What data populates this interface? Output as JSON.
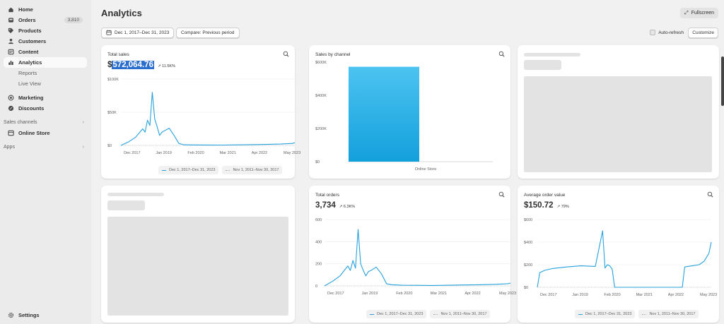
{
  "sidebar": {
    "items": [
      {
        "label": "Home",
        "icon": "home-icon"
      },
      {
        "label": "Orders",
        "icon": "orders-icon",
        "badge": "3,810"
      },
      {
        "label": "Products",
        "icon": "tag-icon"
      },
      {
        "label": "Customers",
        "icon": "person-icon"
      },
      {
        "label": "Content",
        "icon": "content-icon"
      },
      {
        "label": "Analytics",
        "icon": "chart-icon",
        "active": true
      }
    ],
    "analytics_sub": [
      "Reports",
      "Live View"
    ],
    "items2": [
      {
        "label": "Marketing",
        "icon": "target-icon"
      },
      {
        "label": "Discounts",
        "icon": "discount-icon"
      }
    ],
    "sales_channels_label": "Sales channels",
    "online_store_label": "Online Store",
    "apps_label": "Apps",
    "settings_label": "Settings"
  },
  "header": {
    "title": "Analytics",
    "fullscreen_label": "Fullscreen",
    "date_range_label": "Dec 1, 2017–Dec 31, 2023",
    "compare_label": "Compare: Previous period",
    "auto_refresh_label": "Auto-refresh",
    "customize_label": "Customize"
  },
  "colors": {
    "accent": "#26a1dd",
    "bar_top": "#4cc3f0",
    "bar_bottom": "#13a0dc",
    "highlight": "#2c6ecb"
  },
  "cards": {
    "total_sales": {
      "title": "Total sales",
      "value_prefix": "$",
      "value_highlight": "572,064.76",
      "trend": "↗ 11.5K%",
      "legend_current": "Dec 1, 2017–Dec 31, 2023",
      "legend_previous": "Nov 1, 2011–Nov 30, 2017"
    },
    "sales_by_channel": {
      "title": "Sales by channel"
    },
    "total_orders": {
      "title": "Total orders",
      "value": "3,734",
      "trend": "↗ 6.3K%",
      "legend_current": "Dec 1, 2017–Dec 31, 2023",
      "legend_previous": "Nov 1, 2011–Nov 30, 2017"
    },
    "average_order_value": {
      "title": "Average order value",
      "value": "$150.72",
      "trend": "↗ 79%",
      "legend_current": "Dec 1, 2017–Dec 31, 2023",
      "legend_previous": "Nov 1, 2011–Nov 30, 2017"
    }
  },
  "chart_data": [
    {
      "id": "total_sales",
      "type": "line",
      "x": [
        "Dec 2017",
        "Mar 2018",
        "Jun 2018",
        "Sep 2018",
        "Oct 2018",
        "Nov 2018",
        "Dec 2018",
        "Jan 2019",
        "Feb 2019",
        "Mar 2019",
        "Apr 2019",
        "May 2019",
        "Jun 2019",
        "Aug 2019",
        "Oct 2019",
        "Dec 2019",
        "Feb 2020",
        "Apr 2020",
        "Jun 2020",
        "Dec 2020",
        "Jun 2021",
        "Dec 2021",
        "Jun 2022",
        "Dec 2022",
        "Jun 2023",
        "Nov 2023",
        "Dec 2023"
      ],
      "series": [
        {
          "values": [
            0,
            5000,
            12000,
            25000,
            20000,
            38000,
            30000,
            80000,
            40000,
            28000,
            15000,
            20000,
            22000,
            26000,
            15000,
            3000,
            1000,
            800,
            700,
            600,
            500,
            900,
            1200,
            1500,
            2000,
            3000,
            4000
          ]
        }
      ],
      "xticks": [
        "Dec 2017",
        "Jan 2019",
        "Feb 2020",
        "Mar 2021",
        "Apr 2022",
        "May 2023"
      ],
      "yticks": [
        "$0",
        "$50K",
        "$100K"
      ],
      "ylim": [
        0,
        100000
      ]
    },
    {
      "id": "sales_by_channel",
      "type": "bar",
      "categories": [
        "Online Store"
      ],
      "values": [
        572064.76
      ],
      "yticks": [
        "$0",
        "$200K",
        "$400K",
        "$600K"
      ],
      "ylim": [
        0,
        600000
      ]
    },
    {
      "id": "total_orders",
      "type": "line",
      "x": [
        "Dec 2017",
        "Mar 2018",
        "Jun 2018",
        "Sep 2018",
        "Oct 2018",
        "Nov 2018",
        "Dec 2018",
        "Jan 2019",
        "Feb 2019",
        "Mar 2019",
        "Apr 2019",
        "May 2019",
        "Jun 2019",
        "Aug 2019",
        "Oct 2019",
        "Dec 2019",
        "Feb 2020",
        "Apr 2020",
        "Jun 2020",
        "Dec 2020",
        "Jun 2021",
        "Dec 2021",
        "Jun 2022",
        "Dec 2022",
        "Jun 2023",
        "Nov 2023",
        "Dec 2023"
      ],
      "series": [
        {
          "values": [
            0,
            40,
            90,
            180,
            140,
            230,
            160,
            510,
            200,
            140,
            90,
            130,
            140,
            170,
            110,
            20,
            10,
            8,
            6,
            5,
            4,
            6,
            8,
            10,
            14,
            20,
            25
          ]
        }
      ],
      "xticks": [
        "Dec 2017",
        "Jan 2019",
        "Feb 2020",
        "Mar 2021",
        "Apr 2022",
        "May 2023"
      ],
      "yticks": [
        "0",
        "200",
        "400",
        "600"
      ],
      "ylim": [
        0,
        600
      ]
    },
    {
      "id": "average_order_value",
      "type": "line",
      "x": [
        "Dec 2017",
        "Jan 2018",
        "Mar 2018",
        "Jun 2018",
        "Dec 2018",
        "Jun 2019",
        "Dec 2019",
        "Mar 2020",
        "Apr 2020",
        "May 2020",
        "Jun 2020",
        "Jul 2020",
        "Aug 2020",
        "Sep 2020",
        "Dec 2020",
        "Jun 2021",
        "Dec 2021",
        "Jun 2022",
        "Dec 2022",
        "Jan 2023",
        "Apr 2023",
        "Jul 2023",
        "Sep 2023",
        "Nov 2023",
        "Dec 2023"
      ],
      "series": [
        {
          "values": [
            0,
            130,
            150,
            165,
            180,
            190,
            185,
            500,
            170,
            200,
            190,
            160,
            0,
            0,
            0,
            0,
            0,
            0,
            0,
            180,
            190,
            200,
            230,
            300,
            400
          ]
        }
      ],
      "xticks": [
        "Dec 2017",
        "Jan 2019",
        "Feb 2020",
        "Mar 2021",
        "Apr 2022",
        "May 2023"
      ],
      "yticks": [
        "$0",
        "$200",
        "$400",
        "$600"
      ],
      "ylim": [
        0,
        600
      ]
    }
  ]
}
